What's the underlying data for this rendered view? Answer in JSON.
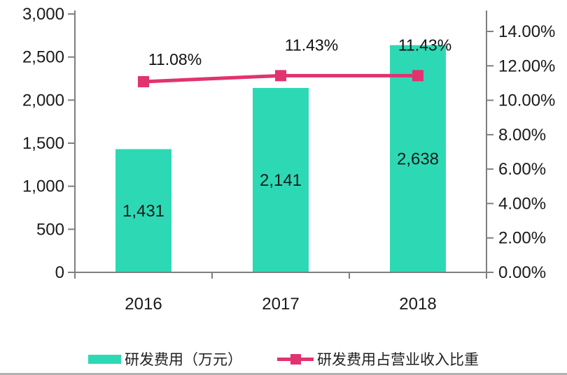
{
  "chart_data": {
    "type": "combo",
    "title": "",
    "categories": [
      "2016",
      "2017",
      "2018"
    ],
    "series": [
      {
        "name": "研发费用（万元）",
        "type": "bar",
        "axis": "left",
        "values": [
          1431,
          2141,
          2638
        ],
        "labels": [
          "1,431",
          "2,141",
          "2,638"
        ]
      },
      {
        "name": "研发费用占营业收入比重",
        "type": "line",
        "axis": "right",
        "values": [
          11.08,
          11.43,
          11.43
        ],
        "labels": [
          "11.08%",
          "11.43%",
          "11.43%"
        ]
      }
    ],
    "left_axis": {
      "min": 0,
      "max": 3000,
      "tick_step": 500,
      "tick_values": [
        0,
        500,
        1000,
        1500,
        2000,
        2500,
        3000
      ],
      "tick_labels": [
        "0",
        "500",
        "1,000",
        "1,500",
        "2,000",
        "2,500",
        "3,000"
      ]
    },
    "right_axis": {
      "min": 0,
      "max": 14,
      "tick_step": 2,
      "tick_values": [
        0,
        2,
        4,
        6,
        8,
        10,
        12,
        14
      ],
      "tick_labels": [
        "0.00%",
        "2.00%",
        "4.00%",
        "6.00%",
        "8.00%",
        "10.00%",
        "12.00%",
        "14.00%"
      ]
    },
    "grid": false,
    "legend_position": "bottom"
  },
  "colors": {
    "bar": "#2DD9B5",
    "line": "#E1336F",
    "axis": "#7F7F7F",
    "text": "#1A1A1A"
  }
}
